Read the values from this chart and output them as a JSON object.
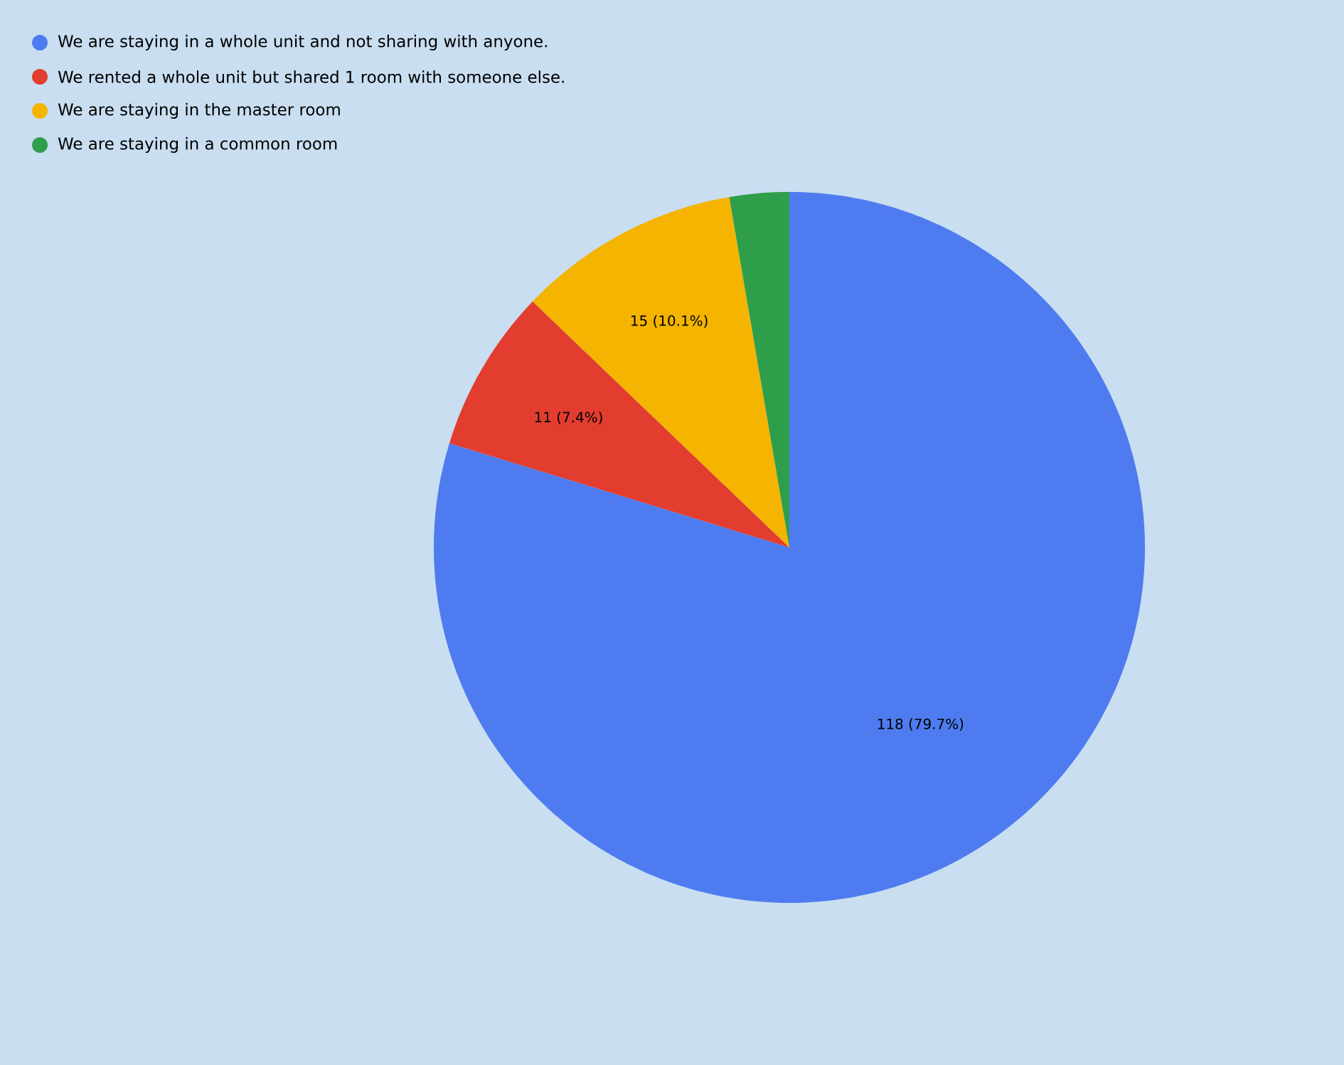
{
  "chart_data": {
    "type": "pie",
    "categories": [
      "We are staying in a whole unit and not sharing with anyone.",
      "We rented a whole unit but shared 1 room with someone else.",
      "We are staying in the master room",
      "We are staying in a common room"
    ],
    "values": [
      118,
      11,
      15,
      4
    ],
    "colors": [
      "#4e7cf0",
      "#e23d2f",
      "#f4b400",
      "#2f9e4a"
    ],
    "value_labels": [
      "118 (79.7%)",
      "11 (7.4%)",
      "15 (10.1%)",
      null
    ],
    "legend": "top left"
  }
}
